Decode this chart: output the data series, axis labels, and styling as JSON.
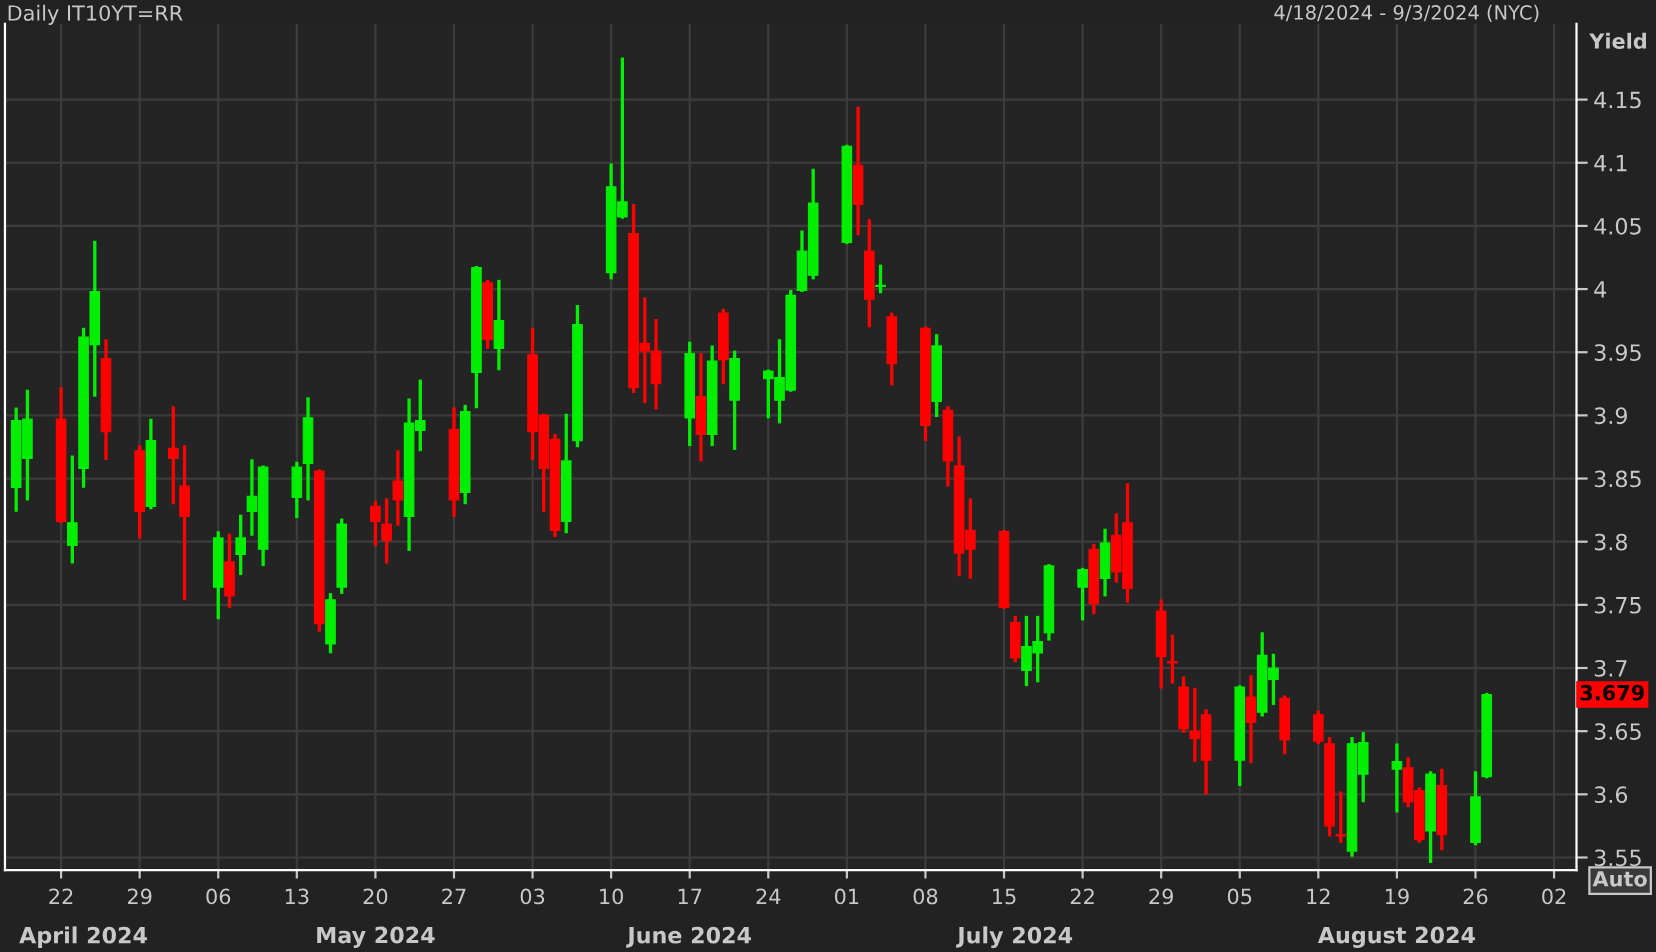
{
  "chart_data": {
    "type": "candlestick",
    "title": "Daily IT10YT=RR",
    "subtitle": "4/18/2024 - 9/3/2024 (NYC)",
    "ylabel": "Yield",
    "x": [
      "2024-04-18",
      "2024-04-19",
      "2024-04-22",
      "2024-04-23",
      "2024-04-24",
      "2024-04-25",
      "2024-04-26",
      "2024-04-29",
      "2024-04-30",
      "2024-05-02",
      "2024-05-03",
      "2024-05-06",
      "2024-05-07",
      "2024-05-08",
      "2024-05-09",
      "2024-05-10",
      "2024-05-13",
      "2024-05-14",
      "2024-05-15",
      "2024-05-16",
      "2024-05-17",
      "2024-05-20",
      "2024-05-21",
      "2024-05-22",
      "2024-05-23",
      "2024-05-24",
      "2024-05-27",
      "2024-05-28",
      "2024-05-29",
      "2024-05-30",
      "2024-05-31",
      "2024-06-03",
      "2024-06-04",
      "2024-06-05",
      "2024-06-06",
      "2024-06-07",
      "2024-06-10",
      "2024-06-11",
      "2024-06-12",
      "2024-06-13",
      "2024-06-14",
      "2024-06-17",
      "2024-06-18",
      "2024-06-19",
      "2024-06-20",
      "2024-06-21",
      "2024-06-24",
      "2024-06-25",
      "2024-06-26",
      "2024-06-27",
      "2024-06-28",
      "2024-07-01",
      "2024-07-02",
      "2024-07-03",
      "2024-07-04",
      "2024-07-05",
      "2024-07-08",
      "2024-07-09",
      "2024-07-10",
      "2024-07-11",
      "2024-07-12",
      "2024-07-15",
      "2024-07-16",
      "2024-07-17",
      "2024-07-18",
      "2024-07-19",
      "2024-07-22",
      "2024-07-23",
      "2024-07-24",
      "2024-07-25",
      "2024-07-26",
      "2024-07-29",
      "2024-07-30",
      "2024-07-31",
      "2024-08-01",
      "2024-08-02",
      "2024-08-05",
      "2024-08-06",
      "2024-08-07",
      "2024-08-08",
      "2024-08-09",
      "2024-08-12",
      "2024-08-13",
      "2024-08-14",
      "2024-08-15",
      "2024-08-16",
      "2024-08-19",
      "2024-08-20",
      "2024-08-21",
      "2024-08-22",
      "2024-08-23",
      "2024-08-26",
      "2024-08-27"
    ],
    "ohlc": [
      [
        3.843,
        3.905,
        3.825,
        3.896
      ],
      [
        3.866,
        3.919,
        3.834,
        3.897
      ],
      [
        3.897,
        3.921,
        3.816,
        3.816
      ],
      [
        3.797,
        3.867,
        3.784,
        3.815
      ],
      [
        3.858,
        3.968,
        3.844,
        3.962
      ],
      [
        3.956,
        4.037,
        3.916,
        3.998
      ],
      [
        3.945,
        3.959,
        3.866,
        3.887
      ],
      [
        3.872,
        3.875,
        3.804,
        3.824
      ],
      [
        3.828,
        3.896,
        3.827,
        3.88
      ],
      [
        3.874,
        3.906,
        3.831,
        3.866
      ],
      [
        3.844,
        3.875,
        3.755,
        3.82
      ],
      [
        3.764,
        3.807,
        3.74,
        3.803
      ],
      [
        3.784,
        3.805,
        3.749,
        3.757
      ],
      [
        3.79,
        3.82,
        3.775,
        3.803
      ],
      [
        3.824,
        3.864,
        3.806,
        3.836
      ],
      [
        3.794,
        3.859,
        3.782,
        3.859
      ],
      [
        3.835,
        3.862,
        3.82,
        3.859
      ],
      [
        3.862,
        3.913,
        3.834,
        3.898
      ],
      [
        3.856,
        3.856,
        3.73,
        3.735
      ],
      [
        3.719,
        3.758,
        3.713,
        3.754
      ],
      [
        3.764,
        3.817,
        3.76,
        3.814
      ],
      [
        3.828,
        3.831,
        3.798,
        3.816
      ],
      [
        3.814,
        3.833,
        3.784,
        3.801
      ],
      [
        3.848,
        3.871,
        3.814,
        3.833
      ],
      [
        3.82,
        3.912,
        3.794,
        3.894
      ],
      [
        3.888,
        3.927,
        3.873,
        3.896
      ],
      [
        3.889,
        3.905,
        3.821,
        3.833
      ],
      [
        3.839,
        3.907,
        3.831,
        3.903
      ],
      [
        3.934,
        4.017,
        3.907,
        4.017
      ],
      [
        4.005,
        4.006,
        3.954,
        3.96
      ],
      [
        3.953,
        4.006,
        3.937,
        3.975
      ],
      [
        3.948,
        3.968,
        3.866,
        3.887
      ],
      [
        3.9,
        3.9,
        3.825,
        3.858
      ],
      [
        3.881,
        3.884,
        3.805,
        3.809
      ],
      [
        3.816,
        3.9,
        3.808,
        3.864
      ],
      [
        3.88,
        3.986,
        3.876,
        3.972
      ],
      [
        4.013,
        4.098,
        4.009,
        4.081
      ],
      [
        4.057,
        4.182,
        4.057,
        4.069
      ],
      [
        4.044,
        4.066,
        3.919,
        3.922
      ],
      [
        3.957,
        3.992,
        3.911,
        3.951
      ],
      [
        3.951,
        3.975,
        3.906,
        3.925
      ],
      [
        3.898,
        3.957,
        3.877,
        3.949
      ],
      [
        3.915,
        3.948,
        3.865,
        3.885
      ],
      [
        3.885,
        3.954,
        3.877,
        3.943
      ],
      [
        3.981,
        3.983,
        3.926,
        3.944
      ],
      [
        3.912,
        3.95,
        3.874,
        3.945
      ],
      [
        3.929,
        3.935,
        3.899,
        3.935
      ],
      [
        3.912,
        3.959,
        3.895,
        3.93
      ],
      [
        3.92,
        3.998,
        3.92,
        3.995
      ],
      [
        3.999,
        4.045,
        3.999,
        4.03
      ],
      [
        4.011,
        4.094,
        4.009,
        4.068
      ],
      [
        4.037,
        4.113,
        4.037,
        4.113
      ],
      [
        4.098,
        4.143,
        4.044,
        4.067
      ],
      [
        4.03,
        4.054,
        3.971,
        3.992
      ],
      [
        4.002,
        4.018,
        3.998,
        4.003
      ],
      [
        3.978,
        3.98,
        3.925,
        3.941
      ],
      [
        3.969,
        3.969,
        3.881,
        3.892
      ],
      [
        3.911,
        3.963,
        3.9,
        3.955
      ],
      [
        3.904,
        3.906,
        3.845,
        3.864
      ],
      [
        3.86,
        3.882,
        3.774,
        3.791
      ],
      [
        3.809,
        3.833,
        3.772,
        3.794
      ],
      [
        3.808,
        3.808,
        3.748,
        3.748
      ],
      [
        3.736,
        3.74,
        3.706,
        3.708
      ],
      [
        3.698,
        3.74,
        3.687,
        3.717
      ],
      [
        3.712,
        3.74,
        3.69,
        3.721
      ],
      [
        3.728,
        3.781,
        3.723,
        3.781
      ],
      [
        3.764,
        3.778,
        3.739,
        3.778
      ],
      [
        3.794,
        3.797,
        3.744,
        3.751
      ],
      [
        3.771,
        3.809,
        3.758,
        3.799
      ],
      [
        3.805,
        3.821,
        3.769,
        3.776
      ],
      [
        3.815,
        3.845,
        3.753,
        3.763
      ],
      [
        3.745,
        3.753,
        3.685,
        3.709
      ],
      [
        3.705,
        3.725,
        3.689,
        3.704
      ],
      [
        3.685,
        3.692,
        3.65,
        3.652
      ],
      [
        3.65,
        3.683,
        3.627,
        3.644
      ],
      [
        3.663,
        3.666,
        3.601,
        3.627
      ],
      [
        3.627,
        3.685,
        3.608,
        3.685
      ],
      [
        3.677,
        3.693,
        3.626,
        3.657
      ],
      [
        3.665,
        3.727,
        3.663,
        3.71
      ],
      [
        3.691,
        3.71,
        3.672,
        3.7
      ],
      [
        3.676,
        3.677,
        3.633,
        3.643
      ],
      [
        3.663,
        3.665,
        3.641,
        3.642
      ],
      [
        3.64,
        3.644,
        3.568,
        3.575
      ],
      [
        3.568,
        3.601,
        3.563,
        3.567
      ],
      [
        3.555,
        3.644,
        3.552,
        3.64
      ],
      [
        3.616,
        3.648,
        3.595,
        3.641
      ],
      [
        3.62,
        3.639,
        3.587,
        3.626
      ],
      [
        3.621,
        3.628,
        3.591,
        3.594
      ],
      [
        3.603,
        3.604,
        3.563,
        3.564
      ],
      [
        3.571,
        3.617,
        3.547,
        3.616
      ],
      [
        3.607,
        3.619,
        3.557,
        3.568
      ],
      [
        3.562,
        3.617,
        3.561,
        3.598
      ],
      [
        3.614,
        3.679,
        3.614,
        3.679
      ]
    ],
    "colors": [
      "#00ee00",
      "#00ee00",
      "#ff0000",
      "#00ee00",
      "#00ee00",
      "#00ee00",
      "#ff0000",
      "#ff0000",
      "#00ee00",
      "#ff0000",
      "#ff0000",
      "#00ee00",
      "#ff0000",
      "#00ee00",
      "#00ee00",
      "#00ee00",
      "#00ee00",
      "#00ee00",
      "#ff0000",
      "#00ee00",
      "#00ee00",
      "#ff0000",
      "#ff0000",
      "#ff0000",
      "#00ee00",
      "#00ee00",
      "#ff0000",
      "#00ee00",
      "#00ee00",
      "#ff0000",
      "#00ee00",
      "#ff0000",
      "#ff0000",
      "#ff0000",
      "#00ee00",
      "#00ee00",
      "#00ee00",
      "#00ee00",
      "#ff0000",
      "#ff0000",
      "#ff0000",
      "#00ee00",
      "#ff0000",
      "#00ee00",
      "#ff0000",
      "#00ee00",
      "#00ee00",
      "#00ee00",
      "#00ee00",
      "#00ee00",
      "#00ee00",
      "#00ee00",
      "#ff0000",
      "#ff0000",
      "#00ee00",
      "#ff0000",
      "#ff0000",
      "#00ee00",
      "#ff0000",
      "#ff0000",
      "#ff0000",
      "#ff0000",
      "#ff0000",
      "#00ee00",
      "#00ee00",
      "#00ee00",
      "#00ee00",
      "#ff0000",
      "#00ee00",
      "#ff0000",
      "#ff0000",
      "#ff0000",
      "#ff0000",
      "#ff0000",
      "#ff0000",
      "#ff0000",
      "#00ee00",
      "#ff0000",
      "#00ee00",
      "#00ee00",
      "#ff0000",
      "#ff0000",
      "#ff0000",
      "#ff0000",
      "#00ee00",
      "#00ee00",
      "#00ee00",
      "#ff0000",
      "#ff0000",
      "#00ee00",
      "#ff0000",
      "#00ee00",
      "#00ee00"
    ],
    "x2lim": [
      "2024-04-17",
      "2024-09-04"
    ],
    "xlim": [
      "2024-04-17",
      "2024-09-04"
    ],
    "xticks": [
      {
        "value": "2024-04-22",
        "label": "22"
      },
      {
        "value": "2024-04-29",
        "label": "29"
      },
      {
        "value": "2024-05-06",
        "label": "06"
      },
      {
        "value": "2024-05-13",
        "label": "13"
      },
      {
        "value": "2024-05-20",
        "label": "20"
      },
      {
        "value": "2024-05-27",
        "label": "27"
      },
      {
        "value": "2024-06-03",
        "label": "03"
      },
      {
        "value": "2024-06-10",
        "label": "10"
      },
      {
        "value": "2024-06-17",
        "label": "17"
      },
      {
        "value": "2024-06-24",
        "label": "24"
      },
      {
        "value": "2024-07-01",
        "label": "01"
      },
      {
        "value": "2024-07-08",
        "label": "08"
      },
      {
        "value": "2024-07-15",
        "label": "15"
      },
      {
        "value": "2024-07-22",
        "label": "22"
      },
      {
        "value": "2024-07-29",
        "label": "29"
      },
      {
        "value": "2024-08-05",
        "label": "05"
      },
      {
        "value": "2024-08-12",
        "label": "12"
      },
      {
        "value": "2024-08-19",
        "label": "19"
      },
      {
        "value": "2024-08-26",
        "label": "26"
      },
      {
        "value": "2024-09-02",
        "label": "02"
      }
    ],
    "x2ticks": [
      {
        "value": "2024-04-24",
        "label": "April 2024"
      },
      {
        "value": "2024-05-20",
        "label": "May 2024"
      },
      {
        "value": "2024-06-17",
        "label": "June 2024"
      },
      {
        "value": "2024-07-16",
        "label": "July 2024"
      },
      {
        "value": "2024-08-19",
        "label": "August 2024"
      }
    ],
    "ylim": [
      3.54,
      4.21
    ],
    "yticks": [
      3.55,
      3.6,
      3.65,
      3.7,
      3.75,
      3.8,
      3.85,
      3.9,
      3.95,
      {
        "value": 4.0,
        "label": "4"
      },
      4.05,
      4.1,
      4.15
    ],
    "grid": true,
    "annotations": [
      "3.679",
      "Auto"
    ]
  }
}
